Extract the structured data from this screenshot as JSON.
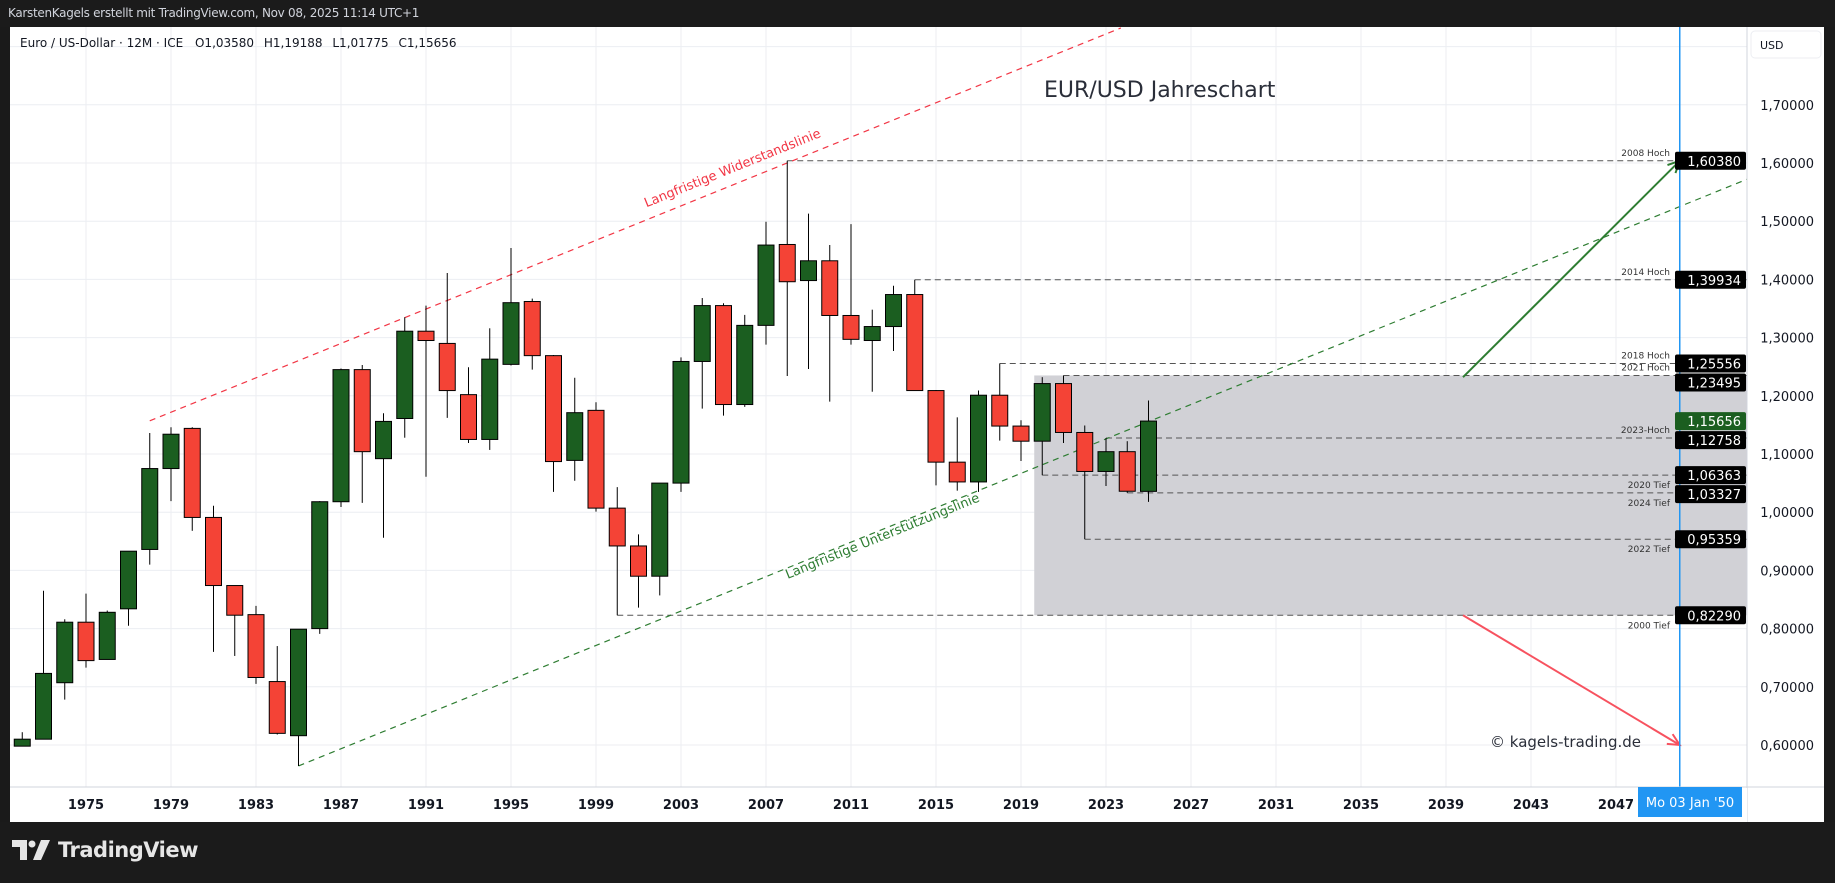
{
  "header": {
    "attribution": "KarstenKagels erstellt mit TradingView.com, Nov 08, 2025 11:14 UTC+1"
  },
  "legend": {
    "symbol": "Euro / US-Dollar · 12M · ICE",
    "open": "O1,03580",
    "high": "H1,19188",
    "low": "L1,01775",
    "close": "C1,15656"
  },
  "chart_title": "EUR/USD Jahreschart",
  "watermark": "© kagels-trading.de",
  "currency": "USD",
  "crosshair_date": "Mo 03 Jan '50",
  "brand": "TradingView",
  "colors": {
    "up": "#1b5e20",
    "down": "#f44336",
    "resistance": "#f23645",
    "support": "#2e7d32",
    "crosshair": "#2196f3",
    "zone": "#d1d1d6",
    "last_price": "#1b5e20"
  },
  "annotations": {
    "resistance_label": "Langfristige Widerstandslinie",
    "support_label": "Langfristige Unterstützungslinie"
  },
  "chart_data": {
    "type": "candlestick",
    "interval": "12M",
    "x_axis": {
      "ticks": [
        "1975",
        "1979",
        "1983",
        "1987",
        "1991",
        "1995",
        "1999",
        "2003",
        "2007",
        "2011",
        "2015",
        "2019",
        "2023",
        "2027",
        "2031",
        "2035",
        "2039",
        "2043",
        "2047"
      ]
    },
    "y_axis": {
      "ticks": [
        "0,60000",
        "0,70000",
        "0,80000",
        "0,90000",
        "1,00000",
        "1,10000",
        "1,20000",
        "1,30000",
        "1,40000",
        "1,50000",
        "1,60000",
        "1,70000"
      ],
      "range": [
        0.52,
        1.89
      ]
    },
    "grid": true,
    "candles": [
      [
        1972,
        0.598,
        0.622,
        0.598,
        0.61
      ],
      [
        1973,
        0.61,
        0.865,
        0.61,
        0.723
      ],
      [
        1974,
        0.707,
        0.816,
        0.678,
        0.811
      ],
      [
        1975,
        0.811,
        0.86,
        0.733,
        0.745
      ],
      [
        1976,
        0.747,
        0.831,
        0.747,
        0.828
      ],
      [
        1977,
        0.834,
        0.933,
        0.805,
        0.933
      ],
      [
        1978,
        0.936,
        1.136,
        0.91,
        1.075
      ],
      [
        1979,
        1.075,
        1.146,
        1.019,
        1.134
      ],
      [
        1980,
        1.144,
        1.146,
        0.968,
        0.991
      ],
      [
        1981,
        0.991,
        1.011,
        0.76,
        0.874
      ],
      [
        1982,
        0.874,
        0.874,
        0.753,
        0.823
      ],
      [
        1983,
        0.824,
        0.839,
        0.705,
        0.716
      ],
      [
        1984,
        0.709,
        0.77,
        0.618,
        0.62
      ],
      [
        1985,
        0.616,
        0.799,
        0.564,
        0.799
      ],
      [
        1986,
        0.8,
        1.019,
        0.791,
        1.018
      ],
      [
        1987,
        1.018,
        1.247,
        1.009,
        1.245
      ],
      [
        1988,
        1.245,
        1.253,
        1.016,
        1.104
      ],
      [
        1989,
        1.092,
        1.17,
        0.956,
        1.156
      ],
      [
        1990,
        1.161,
        1.335,
        1.128,
        1.311
      ],
      [
        1991,
        1.311,
        1.355,
        1.061,
        1.295
      ],
      [
        1992,
        1.29,
        1.411,
        1.162,
        1.209
      ],
      [
        1993,
        1.202,
        1.249,
        1.119,
        1.125
      ],
      [
        1994,
        1.125,
        1.316,
        1.107,
        1.263
      ],
      [
        1995,
        1.254,
        1.454,
        1.252,
        1.36
      ],
      [
        1996,
        1.362,
        1.367,
        1.245,
        1.269
      ],
      [
        1997,
        1.269,
        1.27,
        1.035,
        1.087
      ],
      [
        1998,
        1.089,
        1.231,
        1.054,
        1.171
      ],
      [
        1999,
        1.175,
        1.189,
        1.001,
        1.007
      ],
      [
        2000,
        1.007,
        1.043,
        0.8229,
        0.942
      ],
      [
        2001,
        0.942,
        0.962,
        0.836,
        0.89
      ],
      [
        2002,
        0.89,
        1.05,
        0.857,
        1.05
      ],
      [
        2003,
        1.05,
        1.266,
        1.035,
        1.259
      ],
      [
        2004,
        1.259,
        1.368,
        1.178,
        1.355
      ],
      [
        2005,
        1.355,
        1.359,
        1.166,
        1.185
      ],
      [
        2006,
        1.185,
        1.339,
        1.181,
        1.321
      ],
      [
        2007,
        1.321,
        1.499,
        1.288,
        1.459
      ],
      [
        2008,
        1.46,
        1.6038,
        1.234,
        1.396
      ],
      [
        2009,
        1.398,
        1.513,
        1.246,
        1.432
      ],
      [
        2010,
        1.432,
        1.459,
        1.19,
        1.338
      ],
      [
        2011,
        1.338,
        1.495,
        1.288,
        1.297
      ],
      [
        2012,
        1.295,
        1.348,
        1.207,
        1.319
      ],
      [
        2013,
        1.319,
        1.389,
        1.277,
        1.374
      ],
      [
        2014,
        1.374,
        1.39934,
        1.209,
        1.209
      ],
      [
        2015,
        1.209,
        1.21,
        1.046,
        1.086
      ],
      [
        2016,
        1.086,
        1.163,
        1.037,
        1.052
      ],
      [
        2017,
        1.052,
        1.209,
        1.035,
        1.201
      ],
      [
        2018,
        1.201,
        1.25556,
        1.123,
        1.148
      ],
      [
        2019,
        1.148,
        1.158,
        1.088,
        1.122
      ],
      [
        2020,
        1.122,
        1.232,
        1.06363,
        1.221
      ],
      [
        2021,
        1.221,
        1.23495,
        1.119,
        1.137
      ],
      [
        2022,
        1.137,
        1.149,
        0.95359,
        1.07
      ],
      [
        2023,
        1.07,
        1.12758,
        1.045,
        1.104
      ],
      [
        2024,
        1.104,
        1.122,
        1.03327,
        1.036
      ],
      [
        2025,
        1.0358,
        1.19188,
        1.01775,
        1.15656
      ]
    ],
    "levels": [
      {
        "label": "2008 Hoch",
        "value": "1,60380",
        "price": 1.6038,
        "from": 2008,
        "side": "above"
      },
      {
        "label": "2014 Hoch",
        "value": "1,39934",
        "price": 1.39934,
        "from": 2014,
        "side": "above"
      },
      {
        "label": "2018 Hoch",
        "value": "1,25556",
        "price": 1.25556,
        "from": 2018,
        "side": "above"
      },
      {
        "label": "2021 Hoch",
        "value": "1,23495",
        "price": 1.23495,
        "from": 2021,
        "side": "above"
      },
      {
        "label": "2023-Hoch",
        "value": "1,12758",
        "price": 1.12758,
        "from": 2023,
        "side": "above"
      },
      {
        "label": "2020 Tief",
        "value": "1,06363",
        "price": 1.06363,
        "from": 2020,
        "side": "below"
      },
      {
        "label": "2024 Tief",
        "value": "1,03327",
        "price": 1.03327,
        "from": 2024,
        "side": "below"
      },
      {
        "label": "2022 Tief",
        "value": "0,95359",
        "price": 0.95359,
        "from": 2022,
        "side": "below"
      },
      {
        "label": "2000 Tief",
        "value": "0,82290",
        "price": 0.8229,
        "from": 2000,
        "side": "below"
      }
    ],
    "last_price": {
      "value": "1,15656",
      "price": 1.15656
    },
    "zone": {
      "from": 2020,
      "high": 1.23495,
      "low": 0.8229
    },
    "resistance_line": [
      [
        1978,
        1.157
      ],
      [
        2023.7,
        1.832
      ]
    ],
    "support_line": [
      [
        1985,
        0.564
      ],
      [
        2053.2,
        1.5725
      ]
    ],
    "bull_arrow": [
      [
        2039.8,
        1.232
      ],
      [
        2050,
        1.6038
      ]
    ],
    "bear_arrow": [
      [
        2039.8,
        0.823
      ],
      [
        2050,
        0.6
      ]
    ],
    "crosshair_year": 2050
  }
}
